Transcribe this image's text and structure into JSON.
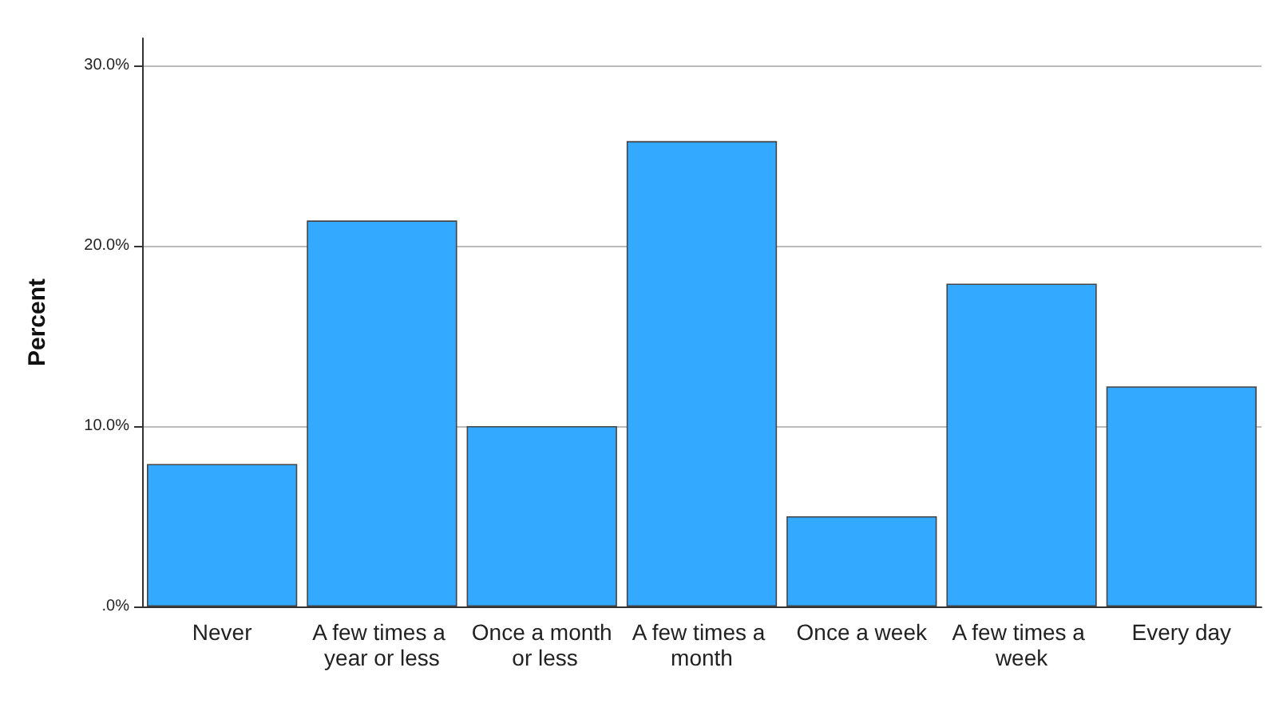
{
  "chart_data": {
    "type": "bar",
    "ylabel": "Percent",
    "categories": [
      "Never",
      "A few times a year or less",
      "Once a month or less",
      "A few times a month",
      "Once a week",
      "A few times a week",
      "Every day"
    ],
    "values": [
      7.9,
      21.4,
      10.0,
      25.8,
      5.0,
      17.9,
      12.2
    ],
    "color": "#33aaff",
    "ylim": [
      0,
      31.5
    ],
    "yticks": [
      {
        "value": 0,
        "label": ".0%"
      },
      {
        "value": 10,
        "label": "10.0%"
      },
      {
        "value": 20,
        "label": "20.0%"
      },
      {
        "value": 30,
        "label": "30.0%"
      }
    ],
    "grid": "y"
  }
}
